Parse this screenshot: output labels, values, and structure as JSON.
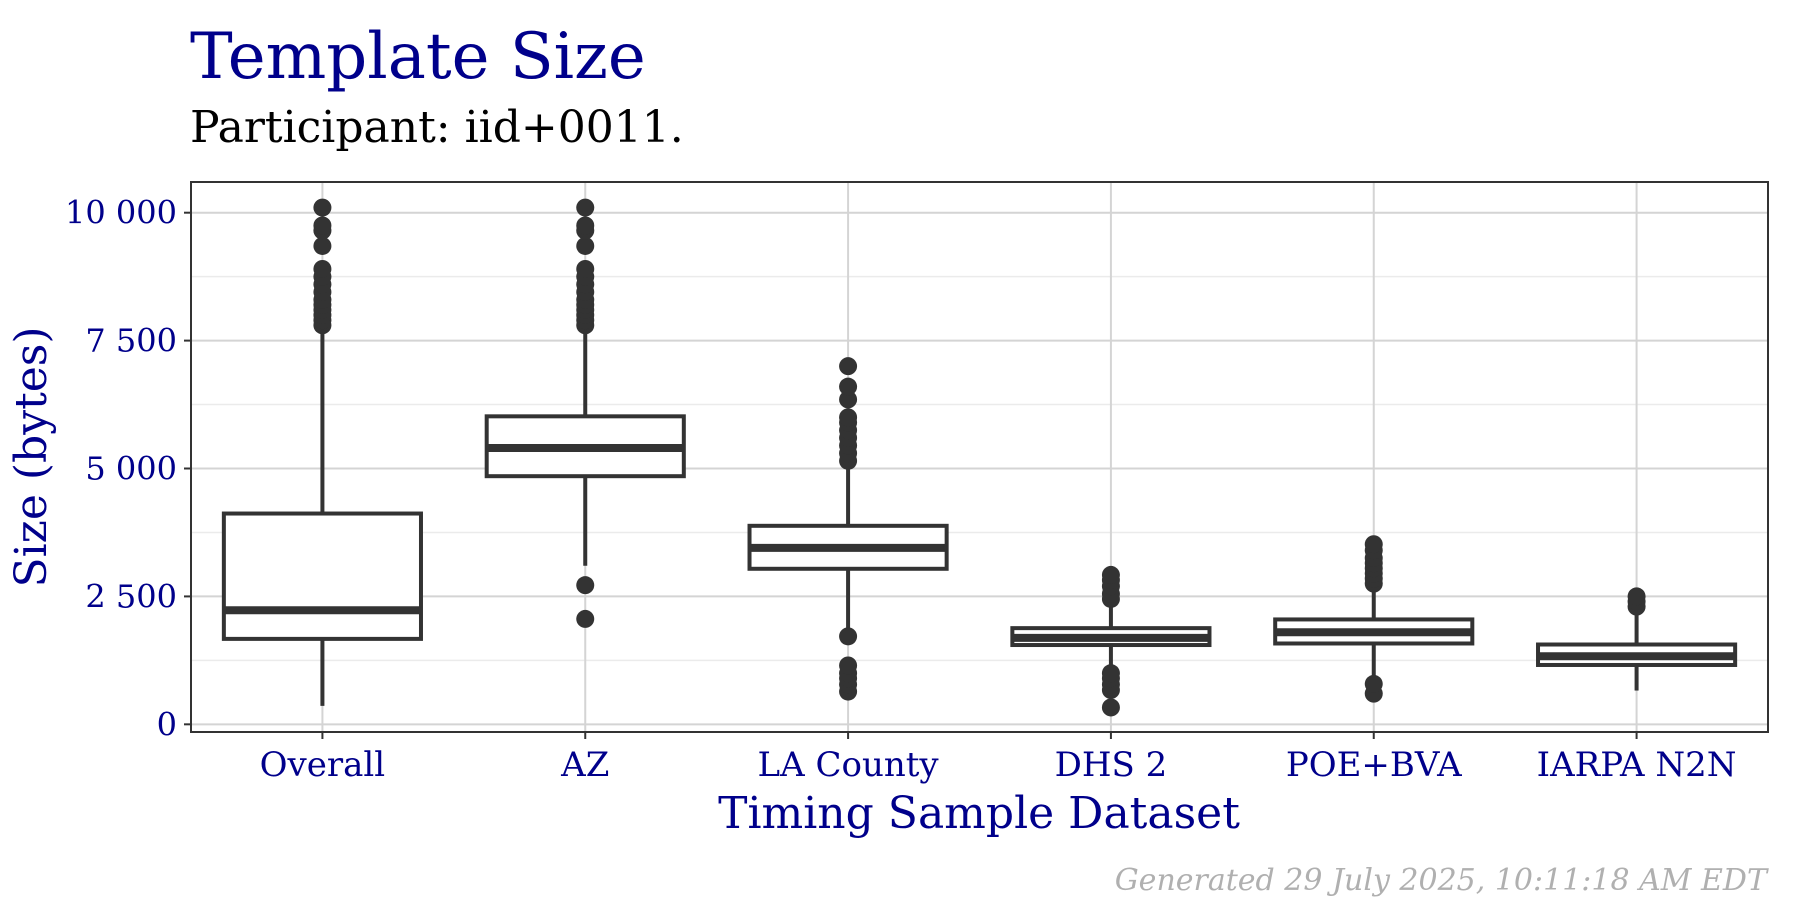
{
  "chart_data": {
    "type": "box",
    "title": "Template Size",
    "subtitle": "Participant: iid+0011.",
    "xlabel": "Timing Sample Dataset",
    "ylabel": "Size (bytes)",
    "ylim": [
      -150,
      10600
    ],
    "yticks": [
      0,
      2500,
      5000,
      7500,
      10000
    ],
    "ytick_labels": [
      "0",
      "2 500",
      "5 000",
      "7 500",
      "10 000"
    ],
    "grid": true,
    "categories": [
      "Overall",
      "AZ",
      "LA County",
      "DHS 2",
      "POE+BVA",
      "IARPA N2N"
    ],
    "boxes": [
      {
        "q1": 1670,
        "median": 2230,
        "q3": 4120,
        "whisker_low": 360,
        "whisker_high": 7780,
        "outliers": [
          7800,
          7900,
          8000,
          8100,
          8200,
          8300,
          8450,
          8600,
          8750,
          8900,
          9350,
          9650,
          9750,
          10100
        ]
      },
      {
        "q1": 4850,
        "median": 5400,
        "q3": 6020,
        "whisker_low": 3100,
        "whisker_high": 7780,
        "outliers": [
          2060,
          2720,
          7800,
          7900,
          8000,
          8100,
          8200,
          8300,
          8450,
          8600,
          8750,
          8900,
          9350,
          9650,
          9750,
          10100
        ]
      },
      {
        "q1": 3040,
        "median": 3450,
        "q3": 3880,
        "whisker_low": 1750,
        "whisker_high": 5100,
        "outliers": [
          640,
          780,
          900,
          1000,
          1150,
          1720,
          5150,
          5300,
          5450,
          5600,
          5750,
          5900,
          6000,
          6350,
          6600,
          7000
        ]
      },
      {
        "q1": 1550,
        "median": 1690,
        "q3": 1880,
        "whisker_low": 1100,
        "whisker_high": 2400,
        "outliers": [
          330,
          670,
          780,
          900,
          1000,
          2450,
          2550,
          2700,
          2820,
          2920
        ]
      },
      {
        "q1": 1580,
        "median": 1800,
        "q3": 2050,
        "whisker_low": 900,
        "whisker_high": 2700,
        "outliers": [
          600,
          790,
          2750,
          2850,
          2950,
          3050,
          3150,
          3250,
          3400,
          3520
        ]
      },
      {
        "q1": 1160,
        "median": 1330,
        "q3": 1560,
        "whisker_low": 660,
        "whisker_high": 2280,
        "outliers": [
          2300,
          2400,
          2500
        ]
      }
    ]
  },
  "footer": "Generated 29 July 2025, 10:11:18 AM EDT",
  "colors": {
    "title": "#00008B",
    "axis_text": "#00008B",
    "box": "#333333",
    "grid_major": "#d4d4d4",
    "grid_minor": "#ebebeb",
    "footer": "#b0b0b0"
  }
}
